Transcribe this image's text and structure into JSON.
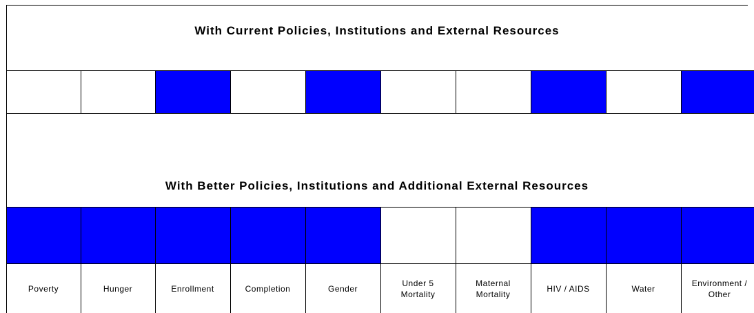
{
  "rows": [
    {
      "title": "With Current Policies, Institutions and External Resources",
      "cells": [
        false,
        false,
        true,
        false,
        true,
        false,
        false,
        true,
        false,
        true
      ]
    },
    {
      "title": "With Better Policies, Institutions and Additional External Resources",
      "cells": [
        true,
        true,
        true,
        true,
        true,
        false,
        false,
        true,
        true,
        true
      ]
    }
  ],
  "labels": [
    "Poverty",
    "Hunger",
    "Enrollment",
    "Completion",
    "Gender",
    "Under 5 Mortality",
    "Maternal Mortality",
    "HIV / AIDS",
    "Water",
    "Environment / Other"
  ],
  "on_color": "#0000ff",
  "off_color": "#ffffff"
}
